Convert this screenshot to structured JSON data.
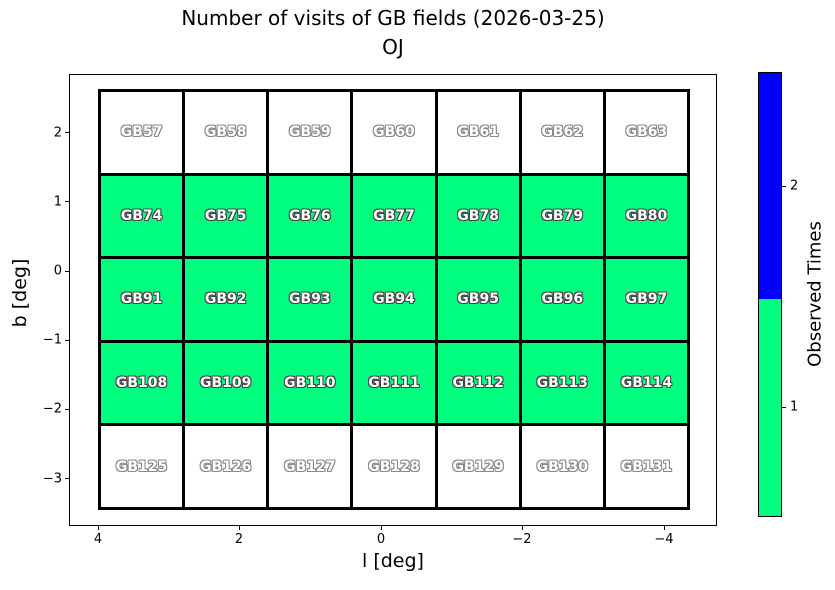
{
  "title": {
    "line1": "Number of visits of GB fields (2026-03-25)",
    "line2": "OJ"
  },
  "axes": {
    "xlabel": "l [deg]",
    "ylabel": "b [deg]",
    "xticks": [
      "4",
      "2",
      "0",
      "−2",
      "−4"
    ],
    "yticks": [
      "2",
      "1",
      "0",
      "−1",
      "−2",
      "−3"
    ]
  },
  "colorbar": {
    "label": "Observed Times",
    "ticks": [
      "1",
      "2"
    ],
    "range": [
      0.5,
      2.5
    ],
    "color_once": "#00FF7F",
    "color_twice": "#0000FF",
    "color_unobserved": "#FFFFFF"
  },
  "chart_data": {
    "type": "heatmap",
    "title": "Number of visits of GB fields (2026-03-25)",
    "subtitle": "OJ",
    "xlabel": "l [deg]",
    "ylabel": "b [deg]",
    "x_axis_inverted": true,
    "xlim": [
      4.4,
      -4.8
    ],
    "ylim": [
      -3.7,
      2.9
    ],
    "xticks": [
      4,
      2,
      0,
      -2,
      -4
    ],
    "yticks": [
      2,
      1,
      0,
      -1,
      -2,
      -3
    ],
    "cell_size_deg": 1.2,
    "l_centers": [
      3.4,
      2.2,
      1.0,
      -0.2,
      -1.4,
      -2.6,
      -3.8
    ],
    "b_centers": [
      2.0,
      0.8,
      -0.4,
      -1.6,
      -2.8
    ],
    "rows": [
      {
        "b_center": 2.0,
        "fields": [
          "GB57",
          "GB58",
          "GB59",
          "GB60",
          "GB61",
          "GB62",
          "GB63"
        ],
        "observed_times": [
          0,
          0,
          0,
          0,
          0,
          0,
          0
        ]
      },
      {
        "b_center": 0.8,
        "fields": [
          "GB74",
          "GB75",
          "GB76",
          "GB77",
          "GB78",
          "GB79",
          "GB80"
        ],
        "observed_times": [
          1,
          1,
          1,
          1,
          1,
          1,
          1
        ]
      },
      {
        "b_center": -0.4,
        "fields": [
          "GB91",
          "GB92",
          "GB93",
          "GB94",
          "GB95",
          "GB96",
          "GB97"
        ],
        "observed_times": [
          1,
          1,
          1,
          1,
          1,
          1,
          1
        ]
      },
      {
        "b_center": -1.6,
        "fields": [
          "GB108",
          "GB109",
          "GB110",
          "GB111",
          "GB112",
          "GB113",
          "GB114"
        ],
        "observed_times": [
          1,
          1,
          1,
          1,
          1,
          1,
          1
        ]
      },
      {
        "b_center": -2.8,
        "fields": [
          "GB125",
          "GB126",
          "GB127",
          "GB128",
          "GB129",
          "GB130",
          "GB131"
        ],
        "observed_times": [
          0,
          0,
          0,
          0,
          0,
          0,
          0
        ]
      }
    ],
    "value_color_map": {
      "0": "#FFFFFF",
      "1": "#00FF7F",
      "2": "#0000FF"
    },
    "colorbar": {
      "label": "Observed Times",
      "ticks": [
        1,
        2
      ],
      "range": [
        0.5,
        2.5
      ],
      "orientation": "vertical",
      "position": "right"
    }
  }
}
